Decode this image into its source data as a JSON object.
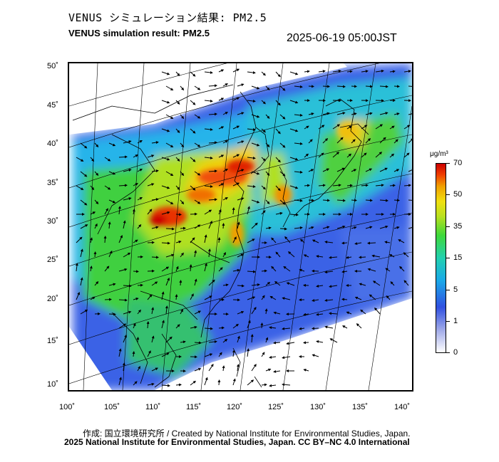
{
  "header": {
    "title_jp": "VENUS シミュレーション結果: PM2.5",
    "title_en": "VENUS simulation result: PM2.5",
    "timestamp": "2025-06-19 05:00JST"
  },
  "axes": {
    "lat_ticks": [
      "50˚",
      "45˚",
      "40˚",
      "35˚",
      "30˚",
      "25˚",
      "20˚",
      "15˚",
      "10˚"
    ],
    "lon_ticks": [
      "100˚",
      "105˚",
      "110˚",
      "115˚",
      "120˚",
      "125˚",
      "130˚",
      "135˚",
      "140˚"
    ]
  },
  "colorbar": {
    "unit": "μg/m³",
    "ticks": [
      "70",
      "50",
      "35",
      "15",
      "5",
      "1",
      "0"
    ]
  },
  "footer": {
    "credit_line": "作成: 国立環境研究所 / Created by National Institute for Environmental Studies, Japan.",
    "license_line": "2025 National Institute for Environmental Studies, Japan. CC BY–NC 4.0 International"
  },
  "colors": {
    "clean": "#ffffff",
    "low": "#3050e0",
    "moderate": "#3ed83a",
    "high": "#f0a000",
    "very_high": "#cc0000"
  }
}
